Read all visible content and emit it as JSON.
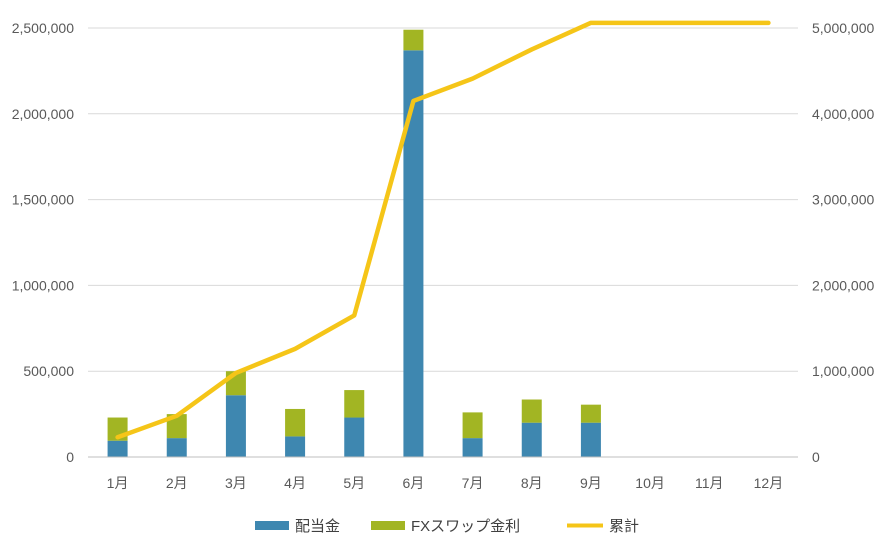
{
  "chart_data": {
    "type": "bar",
    "title": "",
    "xlabel": "",
    "ylabel": "",
    "categories": [
      "1月",
      "2月",
      "3月",
      "4月",
      "5月",
      "6月",
      "7月",
      "8月",
      "9月",
      "10月",
      "11月",
      "12月"
    ],
    "series": [
      {
        "name": "配当金",
        "kind": "stacked-bar",
        "axis": "left",
        "color": "#3E87B0",
        "values": [
          95000,
          110000,
          360000,
          120000,
          230000,
          2370000,
          110000,
          200000,
          200000,
          null,
          null,
          null
        ]
      },
      {
        "name": "FXスワップ金利",
        "kind": "stacked-bar",
        "axis": "left",
        "color": "#A2B523",
        "values": [
          135000,
          140000,
          140000,
          160000,
          160000,
          120000,
          150000,
          135000,
          105000,
          null,
          null,
          null
        ]
      },
      {
        "name": "累計",
        "kind": "line",
        "axis": "right",
        "color": "#F5C518",
        "values": [
          230000,
          480000,
          980000,
          1260000,
          1650000,
          4150000,
          4410000,
          4750000,
          5060000,
          5060000,
          5060000,
          5060000
        ]
      }
    ],
    "y_left": {
      "min": 0,
      "max": 2500000,
      "ticks": [
        "0",
        "500,000",
        "1,000,000",
        "1,500,000",
        "2,000,000",
        "2,500,000"
      ]
    },
    "y_right": {
      "min": 0,
      "max": 5000000,
      "ticks": [
        "0",
        "1,000,000",
        "2,000,000",
        "3,000,000",
        "4,000,000",
        "5,000,000"
      ]
    },
    "grid": true,
    "legend_position": "bottom"
  }
}
